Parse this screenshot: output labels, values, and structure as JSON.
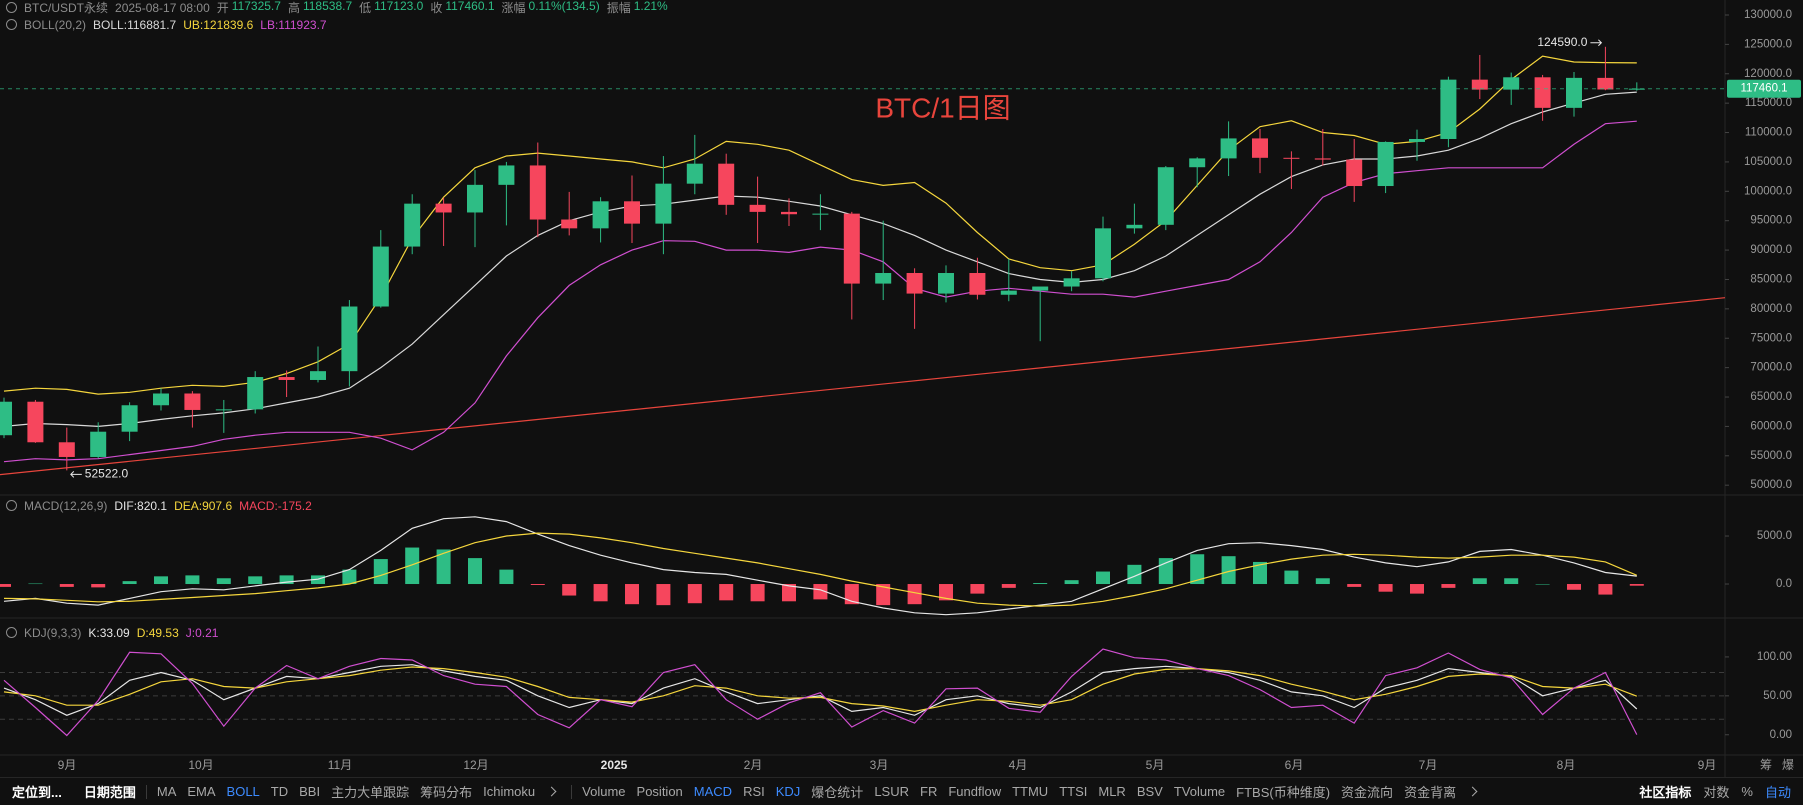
{
  "header": {
    "symbol": "BTC/USDT永续",
    "time": "2025-08-17 08:00",
    "fields": [
      {
        "label": "开",
        "value": "117325.7"
      },
      {
        "label": "高",
        "value": "118538.7"
      },
      {
        "label": "低",
        "value": "117123.0"
      },
      {
        "label": "收",
        "value": "117460.1"
      },
      {
        "label": "涨幅",
        "value": "0.11%(134.5)"
      },
      {
        "label": "振幅",
        "value": "1.21%"
      }
    ]
  },
  "annotation": "BTC/1日图",
  "xtick_labels": [
    "9月",
    "10月",
    "11月",
    "12月",
    "2025",
    "2月",
    "3月",
    "4月",
    "5月",
    "6月",
    "7月",
    "8月",
    "9月"
  ],
  "axis_corner": [
    "筹",
    "爆"
  ],
  "toolbar": {
    "left": [
      "定位到...",
      "日期范围"
    ],
    "main_indicators": [
      {
        "text": "MA",
        "active": false
      },
      {
        "text": "EMA",
        "active": false
      },
      {
        "text": "BOLL",
        "active": true
      },
      {
        "text": "TD",
        "active": false
      },
      {
        "text": "BBI",
        "active": false
      },
      {
        "text": "主力大单跟踪",
        "active": false
      },
      {
        "text": "筹码分布",
        "active": false
      },
      {
        "text": "Ichimoku",
        "active": false
      }
    ],
    "sub_indicators": [
      {
        "text": "Volume",
        "active": false
      },
      {
        "text": "Position",
        "active": false
      },
      {
        "text": "MACD",
        "active": true
      },
      {
        "text": "RSI",
        "active": false
      },
      {
        "text": "KDJ",
        "active": true
      },
      {
        "text": "爆仓统计",
        "active": false
      },
      {
        "text": "LSUR",
        "active": false
      },
      {
        "text": "FR",
        "active": false
      },
      {
        "text": "Fundflow",
        "active": false
      },
      {
        "text": "TTMU",
        "active": false
      },
      {
        "text": "TTSI",
        "active": false
      },
      {
        "text": "MLR",
        "active": false
      },
      {
        "text": "BSV",
        "active": false
      },
      {
        "text": "TVolume",
        "active": false
      },
      {
        "text": "FTBS(币种维度)",
        "active": false
      },
      {
        "text": "资金流向",
        "active": false
      },
      {
        "text": "资金背离",
        "active": false
      }
    ],
    "right": [
      {
        "text": "社区指标",
        "active": false
      },
      {
        "text": "对数",
        "active": false
      },
      {
        "text": "%",
        "active": false
      },
      {
        "text": "自动",
        "active": true
      }
    ]
  },
  "chart_data": [
    {
      "type": "candlestick",
      "title": "BOLL(20,2)",
      "up_color": "#2ebd85",
      "down_color": "#f6465d",
      "open": [
        58500,
        64200,
        57300,
        54800,
        59100,
        63600,
        65600,
        62800,
        62900,
        68400,
        67900,
        69400,
        80400,
        90600,
        97900,
        96400,
        101100,
        104400,
        95200,
        93700,
        98300,
        94500,
        101300,
        104700,
        97700,
        96500,
        96100,
        96200,
        84300,
        86100,
        82600,
        86100,
        82400,
        83100,
        83800,
        85200,
        93700,
        94300,
        104100,
        105600,
        109000,
        105700,
        105600,
        105400,
        100900,
        108400,
        108900,
        119000,
        117300,
        119400,
        114200,
        119300,
        117325.7
      ],
      "high": [
        64900,
        64500,
        59800,
        60700,
        64100,
        66500,
        66000,
        64500,
        69400,
        69500,
        73600,
        81500,
        93400,
        99500,
        98900,
        103600,
        105000,
        108300,
        99900,
        99000,
        102700,
        106000,
        109600,
        106400,
        102500,
        98800,
        99500,
        96500,
        95000,
        86900,
        87400,
        88700,
        88500,
        83500,
        86400,
        95700,
        97900,
        104300,
        105800,
        111900,
        110600,
        106800,
        110600,
        108900,
        108500,
        110500,
        119500,
        123200,
        120200,
        119800,
        120300,
        124590,
        118538.7
      ],
      "low": [
        58000,
        57200,
        52522,
        54600,
        57500,
        62700,
        59800,
        58900,
        62200,
        65000,
        67500,
        66800,
        80200,
        89300,
        90700,
        90500,
        94200,
        92200,
        92500,
        91300,
        91200,
        89300,
        99500,
        96000,
        91200,
        94100,
        93400,
        78200,
        81500,
        76600,
        81100,
        81600,
        81300,
        74500,
        83000,
        84700,
        92800,
        93400,
        100700,
        102600,
        103100,
        100400,
        104400,
        98200,
        99700,
        105200,
        107500,
        115700,
        114700,
        112000,
        112700,
        117200,
        117123
      ],
      "close": [
        64200,
        57300,
        54800,
        59100,
        63600,
        65600,
        62800,
        62900,
        68400,
        67900,
        69400,
        80400,
        90600,
        97900,
        96400,
        101100,
        104400,
        95200,
        93700,
        98300,
        94500,
        101300,
        104700,
        97700,
        96500,
        96100,
        96200,
        84300,
        86100,
        82600,
        86100,
        82400,
        83100,
        83800,
        85200,
        93700,
        94300,
        104100,
        105600,
        109000,
        105700,
        105600,
        105400,
        100900,
        108400,
        108900,
        119000,
        117300,
        119400,
        114200,
        119300,
        117325.7,
        117460.1
      ],
      "series": [
        {
          "label": "BOLL:116881.7",
          "color": "#d9d9d9",
          "values": [
            60000,
            60500,
            60300,
            60000,
            60500,
            61200,
            61800,
            62300,
            63000,
            64000,
            65000,
            66500,
            70000,
            74000,
            79000,
            84000,
            89000,
            92500,
            95000,
            96500,
            97500,
            97800,
            98500,
            99200,
            99000,
            98300,
            97500,
            96000,
            94500,
            92500,
            90000,
            88000,
            86000,
            85000,
            84500,
            85000,
            86500,
            89000,
            92500,
            96000,
            99500,
            102500,
            104500,
            105500,
            105500,
            106000,
            107000,
            109000,
            111500,
            113500,
            115000,
            116500,
            116881.7
          ]
        },
        {
          "label": "UB:121839.6",
          "color": "#f5d63d",
          "values": [
            66000,
            66500,
            66300,
            65500,
            65800,
            66500,
            67000,
            66800,
            67500,
            69000,
            71000,
            74000,
            82000,
            92000,
            99000,
            104000,
            106000,
            106500,
            106000,
            105500,
            105000,
            104000,
            105500,
            108500,
            108000,
            107000,
            104500,
            102000,
            101000,
            101500,
            98000,
            93000,
            88500,
            87000,
            86500,
            87500,
            91000,
            95000,
            101000,
            107000,
            111000,
            112000,
            110000,
            109500,
            108000,
            108500,
            110000,
            114000,
            119000,
            123000,
            122000,
            121900,
            121839.6
          ]
        },
        {
          "label": "LB:111923.7",
          "color": "#d04fd0",
          "values": [
            54000,
            54500,
            54300,
            54500,
            55200,
            55900,
            56600,
            57800,
            58500,
            59000,
            59000,
            59000,
            58000,
            56000,
            59000,
            64000,
            72000,
            78500,
            84000,
            87500,
            90000,
            91600,
            91500,
            90000,
            90000,
            89600,
            90500,
            90000,
            88000,
            83500,
            82000,
            83000,
            83500,
            83000,
            82500,
            82500,
            82000,
            83000,
            84000,
            85000,
            88000,
            93000,
            99000,
            101500,
            103000,
            103500,
            104000,
            104000,
            104000,
            104000,
            108000,
            111500,
            111923.7
          ]
        }
      ],
      "high_label": "124590.0",
      "low_label": "52522.0",
      "trendline": {
        "start": 51800,
        "end": 81900,
        "color": "#e8453c"
      },
      "ylim": [
        48500,
        132550
      ],
      "yticks": [
        {
          "value": 50000,
          "label": "50000.0"
        },
        {
          "value": 55000,
          "label": "55000.0"
        },
        {
          "value": 60000,
          "label": "60000.0"
        },
        {
          "value": 65000,
          "label": "65000.0"
        },
        {
          "value": 70000,
          "label": "70000.0"
        },
        {
          "value": 75000,
          "label": "75000.0"
        },
        {
          "value": 80000,
          "label": "80000.0"
        },
        {
          "value": 85000,
          "label": "85000.0"
        },
        {
          "value": 90000,
          "label": "90000.0"
        },
        {
          "value": 95000,
          "label": "95000.0"
        },
        {
          "value": 100000,
          "label": "100000.0"
        },
        {
          "value": 105000,
          "label": "105000.0"
        },
        {
          "value": 110000,
          "label": "110000.0"
        },
        {
          "value": 115000,
          "label": "115000.0"
        },
        {
          "value": 120000,
          "label": "120000.0"
        },
        {
          "value": 125000,
          "label": "125000.0"
        },
        {
          "value": 130000,
          "label": "130000.0"
        }
      ],
      "grid": false
    },
    {
      "type": "macd",
      "title": "MACD(12,26,9)",
      "up_color": "#2ebd85",
      "down_color": "#f6465d",
      "series": [
        {
          "label": "DIF:820.1",
          "color": "#e6e6e6",
          "values": [
            -1800,
            -1500,
            -2000,
            -2200,
            -1500,
            -800,
            -500,
            -600,
            -200,
            200,
            500,
            1500,
            3500,
            5800,
            6800,
            7000,
            6500,
            5200,
            4000,
            3000,
            2200,
            1500,
            1200,
            1000,
            400,
            -200,
            -600,
            -1800,
            -2500,
            -3000,
            -3200,
            -3000,
            -2600,
            -2200,
            -1800,
            -500,
            800,
            2200,
            3500,
            4200,
            4300,
            4000,
            3600,
            2800,
            2200,
            1800,
            2300,
            3400,
            3600,
            3000,
            2200,
            1200,
            820.1
          ]
        },
        {
          "label": "DEA:907.6",
          "color": "#f5d63d",
          "values": [
            -1500,
            -1550,
            -1700,
            -1850,
            -1800,
            -1600,
            -1400,
            -1200,
            -1000,
            -700,
            -400,
            0,
            900,
            2000,
            3200,
            4300,
            5000,
            5300,
            5200,
            4800,
            4300,
            3700,
            3200,
            2700,
            2200,
            1600,
            1000,
            300,
            -300,
            -900,
            -1500,
            -2000,
            -2200,
            -2300,
            -2200,
            -1800,
            -1200,
            -500,
            400,
            1300,
            2000,
            2600,
            3000,
            3100,
            3000,
            2800,
            2700,
            2800,
            3000,
            3000,
            2800,
            2300,
            907.6
          ]
        },
        {
          "label": "MACD:-175.2",
          "color": "#f6465d",
          "type": "bar",
          "values": [
            -300,
            50,
            -300,
            -350,
            300,
            800,
            900,
            600,
            800,
            900,
            900,
            1500,
            2600,
            3800,
            3600,
            2700,
            1500,
            -100,
            -1200,
            -1800,
            -2100,
            -2200,
            -2000,
            -1700,
            -1800,
            -1800,
            -1600,
            -2100,
            -2200,
            -2100,
            -1700,
            -1000,
            -400,
            100,
            400,
            1300,
            2000,
            2700,
            3100,
            2900,
            2300,
            1400,
            600,
            -300,
            -800,
            -1000,
            -400,
            600,
            600,
            0,
            -600,
            -1100,
            -175.2
          ]
        }
      ],
      "ylim": [
        -3540,
        9170
      ],
      "yticks": [
        {
          "value": 0,
          "label": "0.0"
        },
        {
          "value": 5000,
          "label": "5000.0"
        }
      ]
    },
    {
      "type": "kdj",
      "title": "KDJ(9,3,3)",
      "series": [
        {
          "label": "K:33.09",
          "color": "#e6e6e6",
          "values": [
            60,
            45,
            25,
            40,
            70,
            80,
            70,
            45,
            60,
            75,
            72,
            80,
            88,
            90,
            82,
            75,
            70,
            50,
            35,
            45,
            40,
            60,
            72,
            55,
            40,
            45,
            50,
            30,
            35,
            25,
            45,
            50,
            40,
            35,
            55,
            80,
            85,
            88,
            85,
            80,
            70,
            55,
            50,
            35,
            60,
            70,
            85,
            80,
            75,
            50,
            60,
            70,
            33.09
          ]
        },
        {
          "label": "D:49.53",
          "color": "#f5d63d",
          "values": [
            55,
            50,
            38,
            38,
            52,
            68,
            72,
            62,
            60,
            68,
            72,
            76,
            83,
            87,
            85,
            80,
            74,
            62,
            48,
            45,
            42,
            50,
            63,
            60,
            50,
            47,
            48,
            40,
            37,
            30,
            38,
            45,
            43,
            38,
            45,
            65,
            78,
            84,
            85,
            82,
            76,
            65,
            56,
            45,
            52,
            62,
            75,
            78,
            76,
            62,
            60,
            65,
            49.53
          ]
        },
        {
          "label": "J:0.21",
          "color": "#d04fd0",
          "values": [
            70,
            35,
            -1,
            44,
            106,
            104,
            66,
            11,
            60,
            89,
            72,
            88,
            98,
            96,
            76,
            65,
            62,
            26,
            9,
            45,
            36,
            80,
            90,
            45,
            20,
            41,
            54,
            10,
            31,
            15,
            59,
            60,
            34,
            29,
            75,
            110,
            99,
            96,
            85,
            76,
            58,
            35,
            38,
            15,
            76,
            86,
            105,
            84,
            73,
            26,
            60,
            80,
            0.21
          ]
        }
      ],
      "ylim": [
        -26,
        150
      ],
      "yticks": [
        {
          "value": 0,
          "label": "0.00"
        },
        {
          "value": 50,
          "label": "50.00"
        },
        {
          "value": 100,
          "label": "100.00"
        }
      ],
      "levels": [
        20,
        50,
        80
      ]
    }
  ]
}
